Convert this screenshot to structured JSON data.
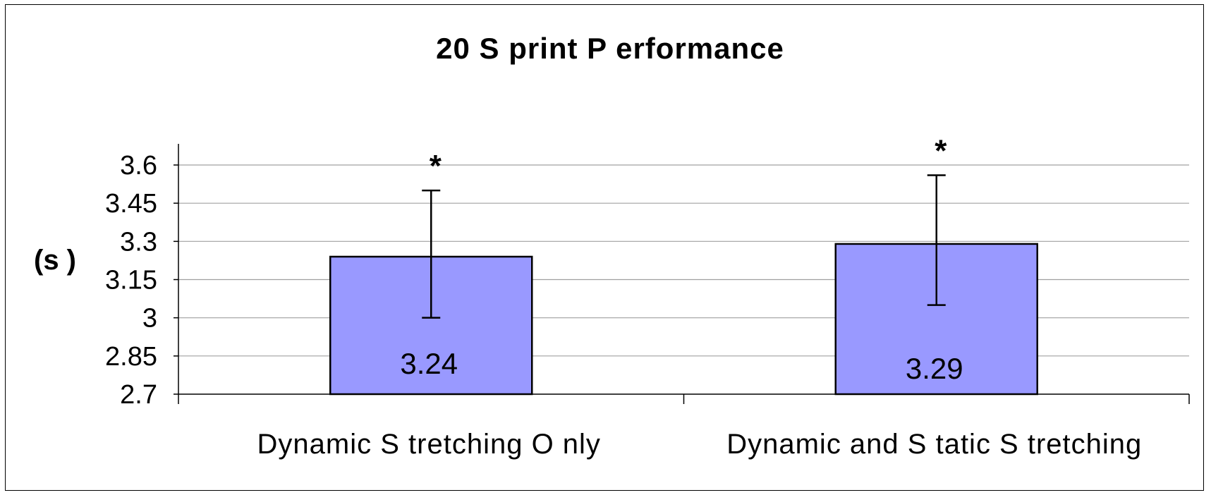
{
  "chart_data": {
    "type": "bar",
    "title": "20 S print P erformance",
    "ylabel": "(s )",
    "xlabel": "",
    "categories": [
      "Dynamic S tretching O nly",
      "Dynamic and S tatic S tretching"
    ],
    "values": [
      3.24,
      3.29
    ],
    "value_labels": [
      "3.24",
      "3.29"
    ],
    "error_bars": [
      {
        "lower": 3.0,
        "upper": 3.5
      },
      {
        "lower": 3.05,
        "upper": 3.56
      }
    ],
    "annotations": [
      "*",
      "*"
    ],
    "ylim": [
      2.7,
      3.6
    ],
    "yticks": [
      2.7,
      2.85,
      3,
      3.15,
      3.3,
      3.45,
      3.6
    ],
    "ytick_labels": [
      "2.7",
      "2.85",
      "3",
      "3.15",
      "3.3",
      "3.45",
      "3.6"
    ],
    "grid": true,
    "bar_color": "#9999ff"
  }
}
